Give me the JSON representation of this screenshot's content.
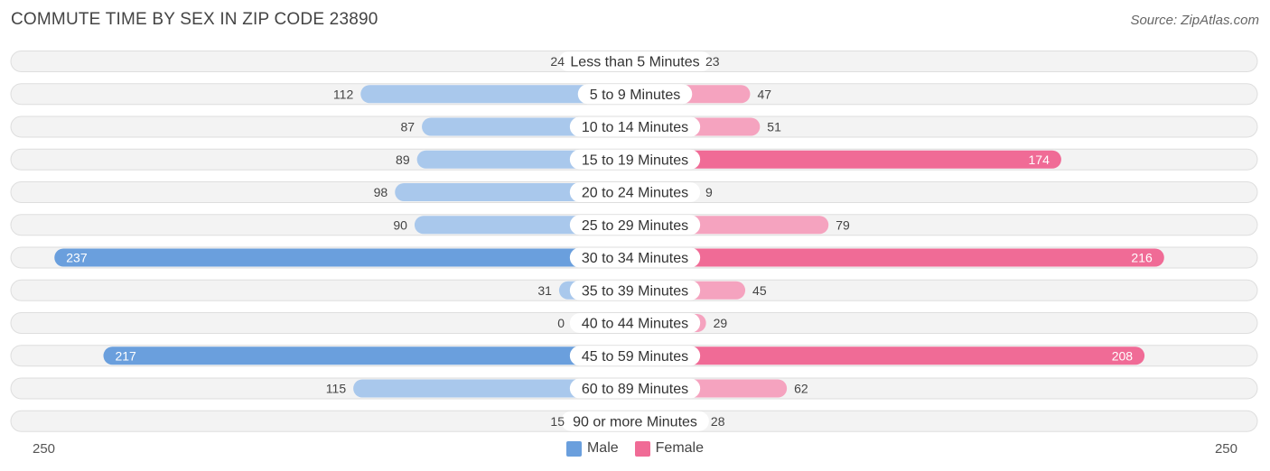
{
  "title": "COMMUTE TIME BY SEX IN ZIP CODE 23890",
  "source": "Source: ZipAtlas.com",
  "colors": {
    "male": "#6a9fdd",
    "male_light": "#a9c8ec",
    "female": "#f06b96",
    "female_light": "#f5a3bf"
  },
  "axis": {
    "left_label": "250",
    "right_label": "250"
  },
  "legend": {
    "male": "Male",
    "female": "Female"
  },
  "chart_data": {
    "type": "bar",
    "orientation": "horizontal-diverging",
    "xlim": [
      -250,
      250
    ],
    "categories": [
      "Less than 5 Minutes",
      "5 to 9 Minutes",
      "10 to 14 Minutes",
      "15 to 19 Minutes",
      "20 to 24 Minutes",
      "25 to 29 Minutes",
      "30 to 34 Minutes",
      "35 to 39 Minutes",
      "40 to 44 Minutes",
      "45 to 59 Minutes",
      "60 to 89 Minutes",
      "90 or more Minutes"
    ],
    "series": [
      {
        "name": "Male",
        "values": [
          24,
          112,
          87,
          89,
          98,
          90,
          237,
          31,
          0,
          217,
          115,
          15
        ]
      },
      {
        "name": "Female",
        "values": [
          23,
          47,
          51,
          174,
          9,
          79,
          216,
          45,
          29,
          208,
          62,
          28
        ]
      }
    ]
  }
}
